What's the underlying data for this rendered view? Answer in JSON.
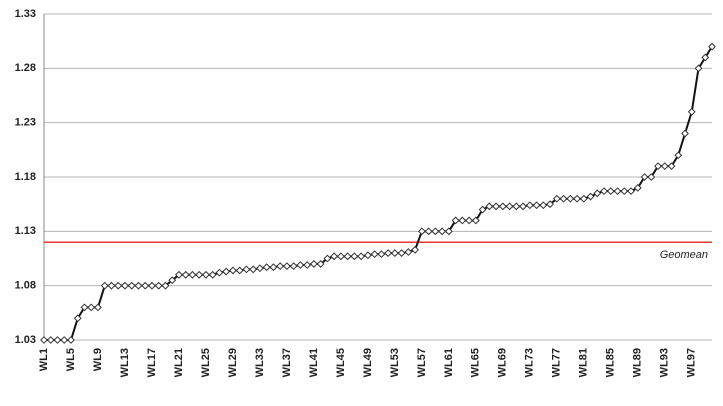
{
  "chart_data": {
    "type": "line",
    "categories": [
      "WL1",
      null,
      null,
      null,
      "WL5",
      null,
      null,
      null,
      "WL9",
      null,
      null,
      null,
      "WL13",
      null,
      null,
      null,
      "WL17",
      null,
      null,
      null,
      "WL21",
      null,
      null,
      null,
      "WL25",
      null,
      null,
      null,
      "WL29",
      null,
      null,
      null,
      "WL33",
      null,
      null,
      null,
      "WL37",
      null,
      null,
      null,
      "WL41",
      null,
      null,
      null,
      "WL45",
      null,
      null,
      null,
      "WL49",
      null,
      null,
      null,
      "WL53",
      null,
      null,
      null,
      "WL57",
      null,
      null,
      null,
      "WL61",
      null,
      null,
      null,
      "WL65",
      null,
      null,
      null,
      "WL69",
      null,
      null,
      null,
      "WL73",
      null,
      null,
      null,
      "WL77",
      null,
      null,
      null,
      "WL81",
      null,
      null,
      null,
      "WL85",
      null,
      null,
      null,
      "WL89",
      null,
      null,
      null,
      "WL93",
      null,
      null,
      null,
      "WL97",
      null,
      null,
      null
    ],
    "series": [
      {
        "color": "#111111",
        "values": [
          1.03,
          1.03,
          1.03,
          1.03,
          1.03,
          1.05,
          1.06,
          1.06,
          1.06,
          1.08,
          1.08,
          1.08,
          1.08,
          1.08,
          1.08,
          1.08,
          1.08,
          1.08,
          1.08,
          1.085,
          1.09,
          1.09,
          1.09,
          1.09,
          1.09,
          1.09,
          1.092,
          1.093,
          1.094,
          1.094,
          1.095,
          1.095,
          1.096,
          1.097,
          1.097,
          1.098,
          1.098,
          1.098,
          1.099,
          1.099,
          1.1,
          1.1,
          1.105,
          1.107,
          1.107,
          1.107,
          1.107,
          1.107,
          1.108,
          1.109,
          1.109,
          1.11,
          1.11,
          1.11,
          1.111,
          1.113,
          1.13,
          1.13,
          1.13,
          1.13,
          1.13,
          1.14,
          1.14,
          1.14,
          1.14,
          1.15,
          1.153,
          1.153,
          1.153,
          1.153,
          1.153,
          1.153,
          1.154,
          1.154,
          1.154,
          1.155,
          1.16,
          1.16,
          1.16,
          1.16,
          1.16,
          1.162,
          1.165,
          1.167,
          1.167,
          1.167,
          1.167,
          1.167,
          1.17,
          1.18,
          1.18,
          1.19,
          1.19,
          1.19,
          1.2,
          1.22,
          1.24,
          1.28,
          1.29,
          1.3
        ]
      }
    ],
    "reference_line": {
      "value": 1.12,
      "label": "Geomean",
      "color": "#e8372f"
    },
    "ylim": [
      1.03,
      1.33
    ],
    "yticks": [
      1.03,
      1.08,
      1.13,
      1.18,
      1.23,
      1.28,
      1.33
    ],
    "grid": true
  }
}
